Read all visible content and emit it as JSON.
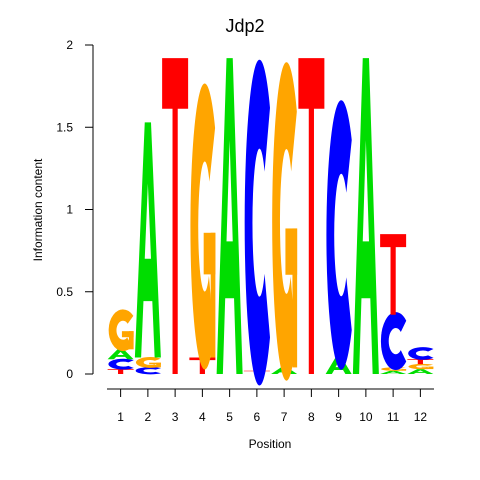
{
  "chart_data": {
    "type": "sequence-logo",
    "title": "Jdp2",
    "xlabel": "Position",
    "ylabel": "Information content",
    "ylim": [
      0,
      2
    ],
    "yticks": [
      "0",
      "0.5",
      "1",
      "1.5",
      "2"
    ],
    "colors": {
      "A": "#00dd00",
      "C": "#0000ff",
      "G": "#ffa500",
      "T": "#ff0000"
    },
    "positions": [
      {
        "label": "1",
        "stack": [
          [
            "T",
            0.03
          ],
          [
            "C",
            0.06
          ],
          [
            "A",
            0.06
          ],
          [
            "G",
            0.23
          ]
        ]
      },
      {
        "label": "2",
        "stack": [
          [
            "C",
            0.04
          ],
          [
            "G",
            0.06
          ],
          [
            "A",
            1.43
          ]
        ]
      },
      {
        "label": "3",
        "stack": [
          [
            "T",
            1.92
          ]
        ]
      },
      {
        "label": "4",
        "stack": [
          [
            "T",
            0.1
          ],
          [
            "G",
            1.58
          ]
        ]
      },
      {
        "label": "5",
        "stack": [
          [
            "A",
            1.92
          ]
        ]
      },
      {
        "label": "6",
        "stack": [
          [
            "T",
            0.02
          ],
          [
            "C",
            1.8
          ]
        ]
      },
      {
        "label": "7",
        "stack": [
          [
            "A",
            0.04
          ],
          [
            "G",
            1.76
          ]
        ]
      },
      {
        "label": "8",
        "stack": [
          [
            "T",
            1.92
          ]
        ]
      },
      {
        "label": "9",
        "stack": [
          [
            "A",
            0.1
          ],
          [
            "C",
            1.49
          ]
        ]
      },
      {
        "label": "10",
        "stack": [
          [
            "A",
            1.92
          ]
        ]
      },
      {
        "label": "11",
        "stack": [
          [
            "A",
            0.02
          ],
          [
            "G",
            0.02
          ],
          [
            "C",
            0.32
          ],
          [
            "T",
            0.49
          ]
        ]
      },
      {
        "label": "12",
        "stack": [
          [
            "A",
            0.03
          ],
          [
            "G",
            0.03
          ],
          [
            "T",
            0.03
          ],
          [
            "C",
            0.07
          ]
        ]
      }
    ]
  }
}
